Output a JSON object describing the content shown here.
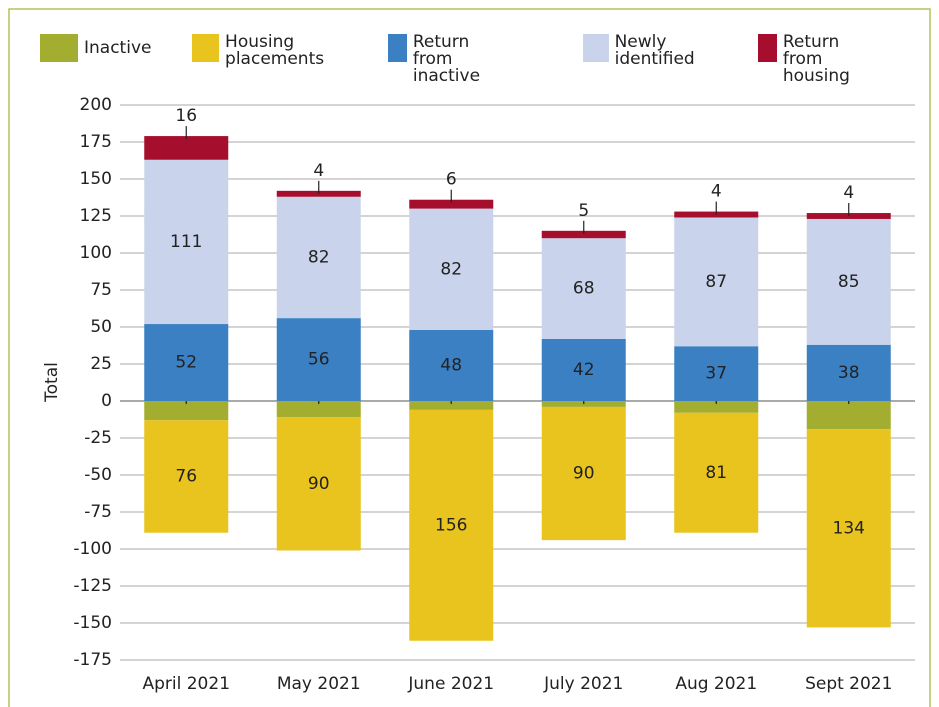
{
  "chart_data": {
    "type": "stacked_bar",
    "y_label": "Total",
    "categories": [
      "April 2021",
      "May 2021",
      "June 2021",
      "July 2021",
      "Aug 2021",
      "Sept 2021"
    ],
    "series": [
      {
        "name": "Inactive",
        "color": "#a3ad2f",
        "values": [
          -13,
          -11,
          -6,
          -4,
          -8,
          -19
        ],
        "value_labels": [
          "13",
          "11",
          "6",
          "4",
          "8",
          "19"
        ]
      },
      {
        "name": "Housing placements",
        "color": "#e9c41f",
        "values": [
          -76,
          -90,
          -156,
          -90,
          -81,
          -134
        ],
        "value_labels": [
          "76",
          "90",
          "156",
          "90",
          "81",
          "134"
        ]
      },
      {
        "name": "Return from inactive",
        "color": "#3a80c3",
        "values": [
          52,
          56,
          48,
          42,
          37,
          38
        ]
      },
      {
        "name": "Newly identified",
        "color": "#c9d3ec",
        "values": [
          111,
          82,
          82,
          68,
          87,
          85
        ]
      },
      {
        "name": "Return from housing",
        "color": "#a50f2d",
        "values": [
          16,
          4,
          6,
          5,
          4,
          4
        ]
      }
    ],
    "ylim": [
      -175,
      200
    ],
    "yticks": [
      -175,
      -150,
      -125,
      -100,
      -75,
      -50,
      -25,
      0,
      25,
      50,
      75,
      100,
      125,
      150,
      175,
      200
    ],
    "grid": true
  }
}
